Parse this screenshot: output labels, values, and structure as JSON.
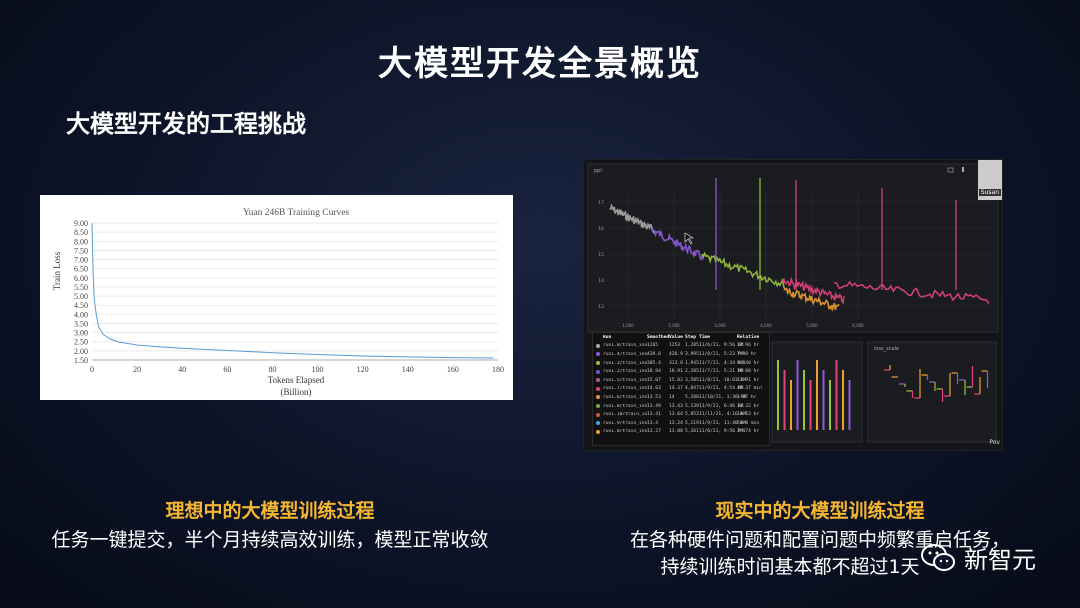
{
  "slide": {
    "title": "大模型开发全景概览",
    "section_title": "大模型开发的工程挑战"
  },
  "captions": {
    "ideal_title": "理想中的大模型训练过程",
    "ideal_desc": "任务一键提交，半个月持续高效训练，模型正常收敛",
    "real_title": "现实中的大模型训练过程",
    "real_desc_line1": "在各种硬件问题和配置问题中频繁重启任务，",
    "real_desc_line2": "持续训练时间基本都不超过1天"
  },
  "watermark": {
    "label": "新智元",
    "icon": "wechat-icon"
  },
  "chart_data": {
    "type": "line",
    "title": "Yuan 246B Training Curves",
    "xlabel": "Tokens Elapsed",
    "xlabel_sub": "(Billion)",
    "ylabel": "Train Loss",
    "xlim": [
      0,
      180
    ],
    "ylim": [
      1.5,
      9.0
    ],
    "x_ticks": [
      "0",
      "20",
      "40",
      "60",
      "80",
      "100",
      "120",
      "140",
      "160",
      "180"
    ],
    "y_ticks": [
      "9.00",
      "8.50",
      "8.00",
      "7.50",
      "7.00",
      "6.50",
      "6.00",
      "5.50",
      "5.00",
      "4.50",
      "4.00",
      "3.50",
      "3.00",
      "2.50",
      "2.00",
      "1.50"
    ],
    "grid": true,
    "color": "#5b9bd5",
    "series": [
      {
        "x": [
          0,
          0.5,
          1,
          2,
          3,
          5,
          8,
          12,
          20,
          30,
          40,
          60,
          80,
          100,
          120,
          140,
          160,
          178
        ],
        "values": [
          9.0,
          6.2,
          4.8,
          3.9,
          3.3,
          2.9,
          2.65,
          2.48,
          2.32,
          2.22,
          2.14,
          2.02,
          1.9,
          1.8,
          1.72,
          1.67,
          1.63,
          1.61
        ]
      }
    ]
  },
  "screenshot": {
    "main_panel_title": "ppl",
    "user_name": "Susan",
    "corner_text": "Pov",
    "panel3_title": "loss_scale",
    "y_ticks": [
      "17",
      "16",
      "15",
      "14",
      "13"
    ],
    "x_ticks": [
      "1,000",
      "2,000",
      "3,000",
      "4,000",
      "5,000",
      "6,000"
    ],
    "table_header": [
      "Run",
      "Smoothed",
      "Value",
      "Step",
      "Time",
      "Relative"
    ],
    "runs": [
      {
        "name": "run1.0/train_inner",
        "smoothed": "1265",
        "value": "1253",
        "step": "1,285",
        "time": "11/6/21, 9:56 AM",
        "relative": "12.96 hr",
        "color": "#aaaaaa"
      },
      {
        "name": "run1.4/train_inner",
        "smoothed": "439.6",
        "value": "420.9",
        "step": "3,995",
        "time": "11/8/21, 5:23 PM",
        "relative": "7.98 hr",
        "color": "#8e5cd9"
      },
      {
        "name": "run1.3/train_inner",
        "smoothed": "305.4",
        "value": "313.8",
        "step": "1,945",
        "time": "11/7/21, 4:34 AM",
        "relative": "9.040 hr",
        "color": "#9ac43b"
      },
      {
        "name": "run1.2/train_inner",
        "smoothed": "18.94",
        "value": "18.91",
        "step": "2,285",
        "time": "11/7/21, 5:21 PM",
        "relative": "10.08 hr",
        "color": "#6a5acd"
      },
      {
        "name": "run1.5/train_inner",
        "smoothed": "15.07",
        "value": "15.02",
        "step": "3,505",
        "time": "11/8/21, 10:03 AM",
        "relative": "12.91 hr",
        "color": "#b05a9a"
      },
      {
        "name": "run1.7/train_inner",
        "smoothed": "14.03",
        "value": "14.37",
        "step": "4,847",
        "time": "11/9/21, 4:54 PM",
        "relative": "44.37 min",
        "color": "#e0457b"
      },
      {
        "name": "run1.6/train_inner",
        "smoothed": "13.53",
        "value": "14",
        "step": "5,280",
        "time": "11/10/21, 1:36 PM",
        "relative": "4.47 hr",
        "color": "#e8904a"
      },
      {
        "name": "run1.8/train_inner",
        "smoothed": "13.49",
        "value": "13.43",
        "step": "5,139",
        "time": "11/9/21, 6:46 AM",
        "relative": "11.32 hr",
        "color": "#7aa850"
      },
      {
        "name": "run1.10/train_inner",
        "smoothed": "13.41",
        "value": "13.64",
        "step": "5,852",
        "time": "11/11/21, 4:16 AM",
        "relative": "16.63 hr",
        "color": "#c06040"
      },
      {
        "name": "run1.9/train_inner",
        "smoothed": "13.4",
        "value": "13.24",
        "step": "5,119",
        "time": "11/9/21, 11:40 AM",
        "relative": "58.8 min",
        "color": "#4aa3df"
      },
      {
        "name": "run1.8/train_inner",
        "smoothed": "13.27",
        "value": "13.08",
        "step": "5,161",
        "time": "11/6/21, 9:56 PM",
        "relative": "3.474 hr",
        "color": "#f0a030"
      }
    ]
  }
}
